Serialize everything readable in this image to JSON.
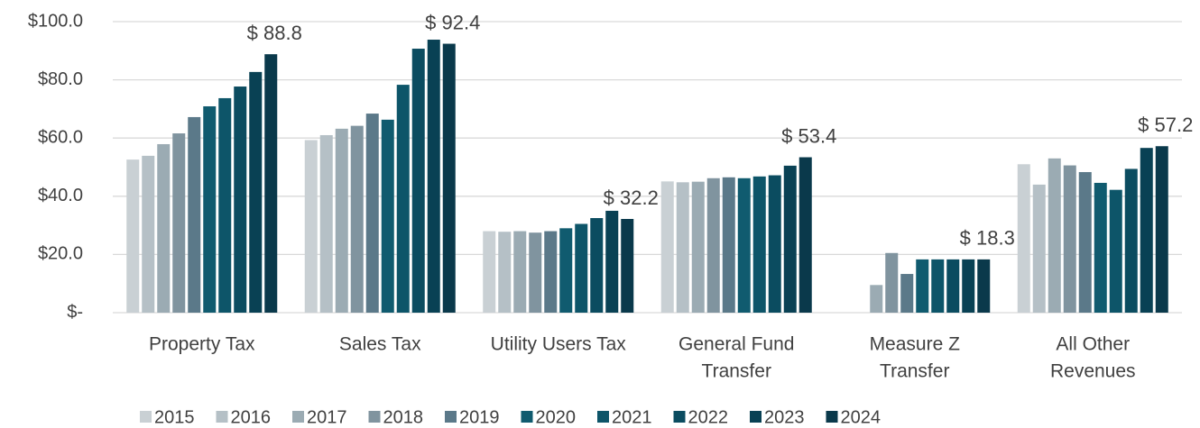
{
  "chart_data": {
    "type": "bar",
    "categories": [
      [
        "Property Tax"
      ],
      [
        "Sales Tax"
      ],
      [
        "Utility Users Tax"
      ],
      [
        "General Fund",
        "Transfer"
      ],
      [
        "Measure Z",
        "Transfer"
      ],
      [
        "All Other",
        "Revenues"
      ]
    ],
    "series": [
      {
        "name": "2015",
        "color": "#c9d0d4",
        "values": [
          52.6,
          59.3,
          28.0,
          45.1,
          null,
          51.0
        ]
      },
      {
        "name": "2016",
        "color": "#b5c0c6",
        "values": [
          53.9,
          61.0,
          27.8,
          44.8,
          null,
          44.0
        ]
      },
      {
        "name": "2017",
        "color": "#9babb3",
        "values": [
          57.9,
          63.2,
          28.0,
          45.0,
          9.5,
          53.0
        ]
      },
      {
        "name": "2018",
        "color": "#80949f",
        "values": [
          61.6,
          64.2,
          27.5,
          46.2,
          20.5,
          50.6
        ]
      },
      {
        "name": "2019",
        "color": "#5b7989",
        "values": [
          67.2,
          68.4,
          28.0,
          46.5,
          13.3,
          48.3
        ]
      },
      {
        "name": "2020",
        "color": "#105b6f",
        "values": [
          70.9,
          66.3,
          29.0,
          46.2,
          18.3,
          44.6
        ]
      },
      {
        "name": "2021",
        "color": "#0d5569",
        "values": [
          73.7,
          78.3,
          30.5,
          46.8,
          18.3,
          42.2
        ]
      },
      {
        "name": "2022",
        "color": "#0b4c60",
        "values": [
          77.7,
          90.7,
          32.5,
          47.2,
          18.3,
          49.4
        ]
      },
      {
        "name": "2023",
        "color": "#094154",
        "values": [
          82.7,
          93.8,
          35.0,
          50.5,
          18.3,
          56.6
        ]
      },
      {
        "name": "2024",
        "color": "#0a394b",
        "values": [
          88.8,
          92.4,
          32.2,
          53.4,
          18.3,
          57.2
        ],
        "value_labels": [
          "$ 88.8",
          "$ 92.4",
          "$ 32.2",
          "$ 53.4",
          "$ 18.3",
          "$ 57.2"
        ]
      }
    ],
    "ylim": [
      0,
      100
    ],
    "yticks": [
      {
        "value": 0,
        "label": "$-"
      },
      {
        "value": 20,
        "label": "$20.0"
      },
      {
        "value": 40,
        "label": "$40.0"
      },
      {
        "value": 60,
        "label": "$60.0"
      },
      {
        "value": 80,
        "label": "$80.0"
      },
      {
        "value": 100,
        "label": "$100.0"
      }
    ],
    "grid": true,
    "legend": "bottom"
  }
}
